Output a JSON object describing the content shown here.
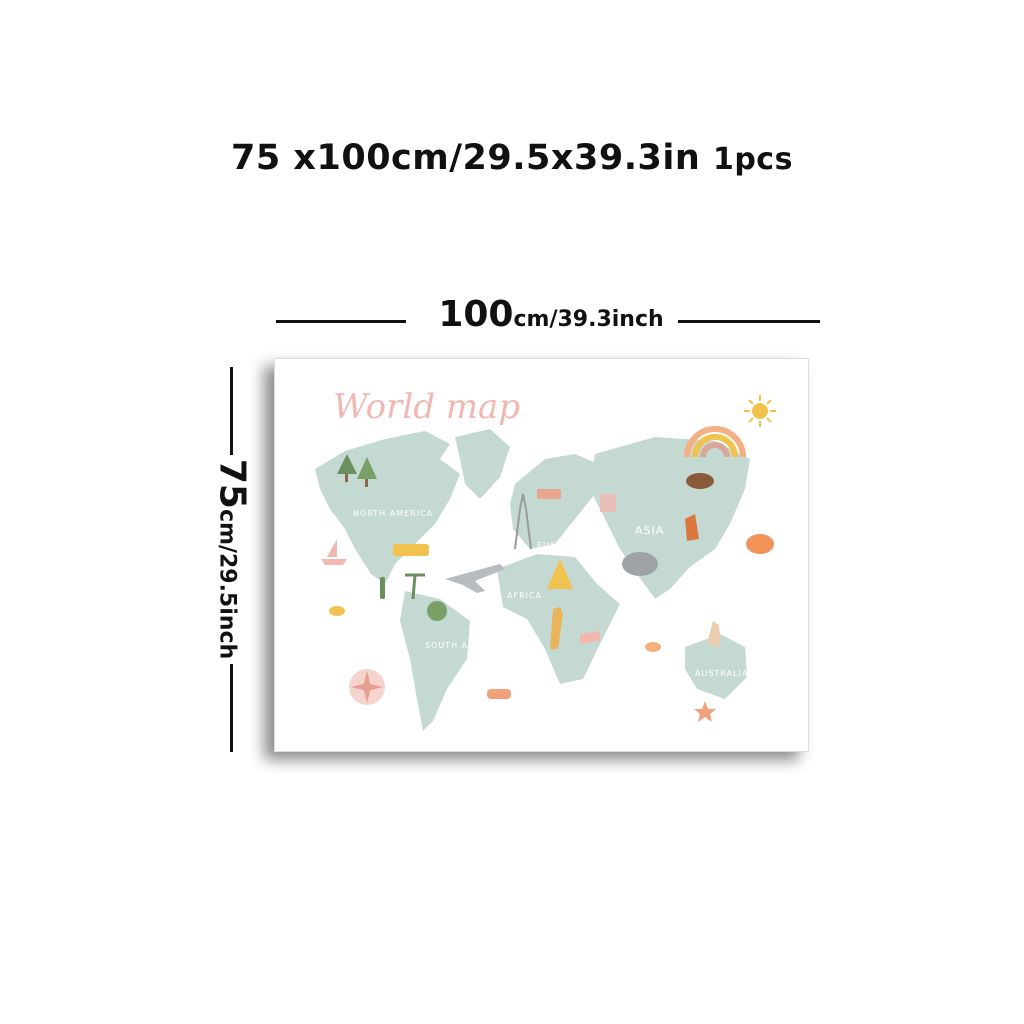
{
  "headline": {
    "text": "75 x100cm/29.5x39.3in",
    "qty": "1pcs"
  },
  "width_dim": {
    "value": "100",
    "unit": "cm/39.3inch"
  },
  "height_dim": {
    "value": "75",
    "unit": "cm/29.5inch"
  },
  "poster": {
    "title": "World map",
    "continents": {
      "north_america": "NORTH AMERICA",
      "south_america": "SOUTH AMERICA",
      "europe": "EUROPE",
      "africa": "AFRICA",
      "asia": "ASIA",
      "australia": "AUSTRALIA"
    }
  },
  "colors": {
    "land": "#c5d9d3",
    "title": "#f0b8b0",
    "accent": "#f2c24e"
  }
}
